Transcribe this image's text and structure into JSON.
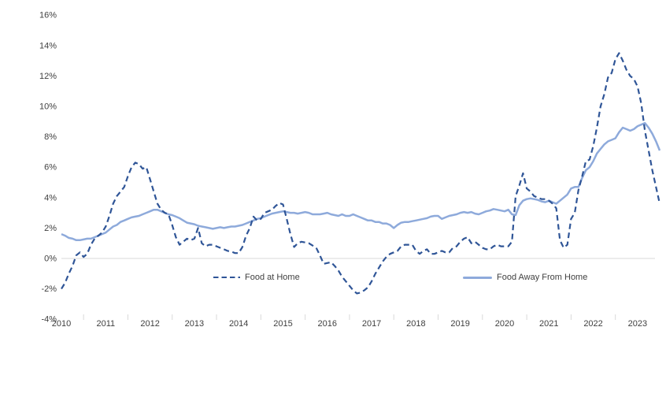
{
  "chart_data": {
    "type": "line",
    "title": "",
    "x_unit": "monthly",
    "x_start": "2010-01",
    "x_end": "2023-07",
    "x_tick_labels": [
      "2010",
      "2011",
      "2012",
      "2013",
      "2014",
      "2015",
      "2016",
      "2017",
      "2018",
      "2019",
      "2020",
      "2021",
      "2022",
      "2023"
    ],
    "y_tick_labels": [
      "16%",
      "14%",
      "12%",
      "10%",
      "8%",
      "6%",
      "4%",
      "2%",
      "0%",
      "-2%",
      "-4%"
    ],
    "ylim": [
      -4,
      16
    ],
    "y_tick_step": 2,
    "grid": "zero-line-only",
    "legend_position": "inside-bottom",
    "axis_text_color": "#404040",
    "gridline_color": "#d9d9d9",
    "series": [
      {
        "name": "Food at Home",
        "style": "dashed",
        "color": "#2F5597",
        "values": [
          -2.0,
          -1.6,
          -1.0,
          -0.5,
          0.2,
          0.4,
          0.1,
          0.3,
          0.9,
          1.3,
          1.5,
          1.7,
          2.1,
          2.8,
          3.6,
          4.1,
          4.4,
          4.7,
          5.4,
          6.0,
          6.3,
          6.2,
          5.9,
          6.0,
          5.2,
          4.4,
          3.6,
          3.2,
          3.0,
          2.9,
          2.2,
          1.4,
          0.9,
          1.1,
          1.3,
          1.2,
          1.3,
          2.0,
          1.0,
          0.8,
          0.9,
          0.9,
          0.8,
          0.7,
          0.6,
          0.5,
          0.45,
          0.35,
          0.35,
          0.75,
          1.5,
          2.0,
          2.75,
          2.5,
          2.6,
          3.0,
          3.1,
          3.2,
          3.45,
          3.65,
          3.55,
          2.6,
          1.6,
          0.75,
          1.0,
          1.1,
          1.05,
          1.0,
          0.85,
          0.7,
          0.2,
          -0.35,
          -0.3,
          -0.25,
          -0.5,
          -0.8,
          -1.2,
          -1.5,
          -1.8,
          -2.1,
          -2.3,
          -2.25,
          -2.1,
          -1.9,
          -1.5,
          -1.0,
          -0.6,
          -0.2,
          0.1,
          0.3,
          0.4,
          0.5,
          0.8,
          0.9,
          0.9,
          0.9,
          0.5,
          0.3,
          0.5,
          0.6,
          0.3,
          0.3,
          0.4,
          0.5,
          0.4,
          0.4,
          0.7,
          0.8,
          1.1,
          1.3,
          1.4,
          1.0,
          1.1,
          0.9,
          0.7,
          0.6,
          0.6,
          0.8,
          0.9,
          0.8,
          0.8,
          0.8,
          1.1,
          4.1,
          4.8,
          5.6,
          4.6,
          4.4,
          4.1,
          4.0,
          3.9,
          3.9,
          3.8,
          3.6,
          3.3,
          1.2,
          0.7,
          0.9,
          2.6,
          3.0,
          4.5,
          5.4,
          6.4,
          6.5,
          7.4,
          8.6,
          10.0,
          10.8,
          11.9,
          12.2,
          13.1,
          13.5,
          13.0,
          12.4,
          12.0,
          11.8,
          11.3,
          10.2,
          8.4,
          7.1,
          5.8,
          4.7,
          3.6
        ]
      },
      {
        "name": "Food Away From Home",
        "style": "solid",
        "color": "#8EAADB",
        "values": [
          1.6,
          1.5,
          1.35,
          1.3,
          1.2,
          1.2,
          1.25,
          1.3,
          1.3,
          1.4,
          1.5,
          1.6,
          1.7,
          1.9,
          2.1,
          2.2,
          2.4,
          2.5,
          2.6,
          2.7,
          2.75,
          2.8,
          2.9,
          3.0,
          3.1,
          3.2,
          3.2,
          3.1,
          3.0,
          2.9,
          2.85,
          2.75,
          2.65,
          2.5,
          2.35,
          2.3,
          2.25,
          2.15,
          2.1,
          2.05,
          2.0,
          1.95,
          2.0,
          2.05,
          2.0,
          2.05,
          2.1,
          2.1,
          2.15,
          2.2,
          2.3,
          2.4,
          2.5,
          2.6,
          2.65,
          2.75,
          2.85,
          2.95,
          3.0,
          3.05,
          3.1,
          3.05,
          3.0,
          3.0,
          2.95,
          3.0,
          3.05,
          3.0,
          2.9,
          2.9,
          2.9,
          2.95,
          3.0,
          2.9,
          2.85,
          2.8,
          2.9,
          2.8,
          2.8,
          2.9,
          2.8,
          2.7,
          2.6,
          2.5,
          2.5,
          2.4,
          2.4,
          2.3,
          2.3,
          2.2,
          2.0,
          2.2,
          2.35,
          2.4,
          2.4,
          2.45,
          2.5,
          2.55,
          2.6,
          2.65,
          2.75,
          2.8,
          2.8,
          2.6,
          2.7,
          2.8,
          2.85,
          2.9,
          3.0,
          3.05,
          3.0,
          3.05,
          2.95,
          2.9,
          3.0,
          3.1,
          3.15,
          3.25,
          3.2,
          3.15,
          3.1,
          3.2,
          2.9,
          2.85,
          3.5,
          3.8,
          3.9,
          3.95,
          3.9,
          3.85,
          3.75,
          3.7,
          3.8,
          3.7,
          3.6,
          3.8,
          4.0,
          4.2,
          4.6,
          4.7,
          4.7,
          5.3,
          5.8,
          6.0,
          6.4,
          6.9,
          7.2,
          7.5,
          7.7,
          7.8,
          7.9,
          8.3,
          8.6,
          8.5,
          8.4,
          8.5,
          8.7,
          8.8,
          8.9,
          8.6,
          8.2,
          7.7,
          7.1
        ]
      }
    ]
  }
}
